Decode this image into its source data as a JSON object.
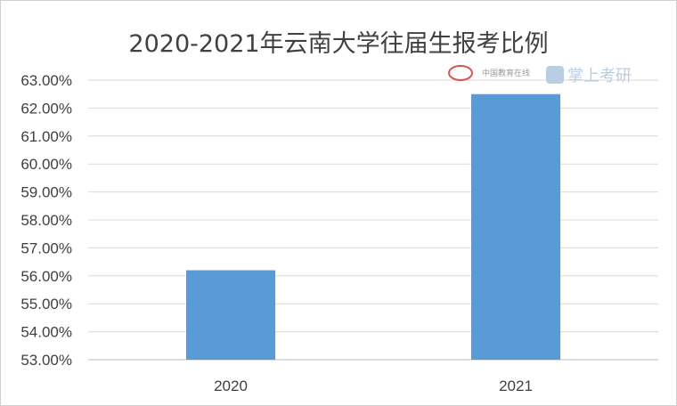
{
  "chart_data": {
    "type": "bar",
    "title": "2020-2021年云南大学往届生报考比例",
    "categories": [
      "2020",
      "2021"
    ],
    "values": [
      56.2,
      62.5
    ],
    "ylim": [
      53,
      63
    ],
    "yticks": [
      "53.00%",
      "54.00%",
      "55.00%",
      "56.00%",
      "57.00%",
      "58.00%",
      "59.00%",
      "60.00%",
      "61.00%",
      "62.00%",
      "63.00%"
    ],
    "xlabel": "",
    "ylabel": "",
    "grid": true,
    "bar_color": "#5b9bd5"
  },
  "watermark": {
    "text_top": "中国教育在线",
    "text_brand": "掌上考研"
  }
}
